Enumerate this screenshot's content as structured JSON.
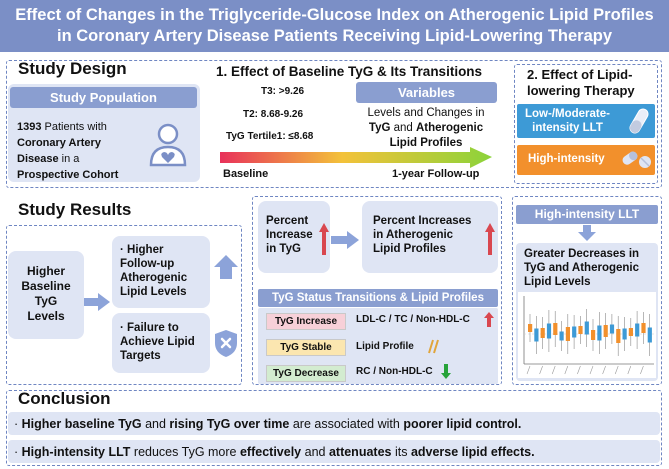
{
  "header": {
    "line1": "Effect of Changes in the Triglyceride-Glucose Index on Atherogenic Lipid Profiles",
    "line2": "in Coronary Artery Disease Patients Receiving Lipid-Lowering Therapy"
  },
  "design": {
    "title": "Study Design",
    "population": {
      "label": "Study Population",
      "count": "1393",
      "t1": " Patients with",
      "t2": "Coronary Artery",
      "t3": "Disease",
      "t4": " in a",
      "t5": "Prospective Cohort"
    },
    "effect1": {
      "title": "1. Effect of Baseline TyG & Its Transitions",
      "t3": "T3:  >9.26",
      "t2": "T2:  8.68-9.26",
      "t1": "TyG Tertile1: ≤8.68",
      "variables": "Variables",
      "var_l1": "Levels and Changes in",
      "var_tyg": "TyG",
      "var_and": " and ",
      "var_ath": "Atherogenic",
      "var_l3": "Lipid Profiles",
      "baseline": "Baseline",
      "followup": "1-year Follow-up"
    },
    "effect2": {
      "title1": "2. Effect of Lipid-",
      "title2": "lowering Therapy",
      "low1": "Low-/Moderate-",
      "low2": "intensity LLT",
      "high": "High-intensity"
    }
  },
  "results": {
    "title": "Study Results",
    "higher": [
      "Higher",
      "Baseline",
      "TyG",
      "Levels"
    ],
    "out1": [
      "· Higher",
      "Follow-up",
      "Atherogenic",
      "Lipid Levels"
    ],
    "out2": [
      "· Failure to",
      "Achieve Lipid",
      "Targets"
    ],
    "pct1": [
      "Percent",
      "Increase",
      "in TyG"
    ],
    "pct2": [
      "Percent Increases",
      "in Atherogenic",
      "Lipid Profiles"
    ],
    "transitions": {
      "title": "TyG Status Transitions & Lipid Profiles",
      "rows": [
        {
          "tag": "TyG Increase",
          "text": "LDL-C / TC / Non-HDL-C",
          "color": "#f7d0d8"
        },
        {
          "tag": "TyG Stable",
          "text": "Lipid Profile",
          "color": "#fbe6b0"
        },
        {
          "tag": "TyG Decrease",
          "text": "RC / Non-HDL-C",
          "color": "#d3ecd0"
        }
      ]
    },
    "hi": {
      "title": "High-intensity LLT",
      "l1": "Greater Decreases in",
      "l2": "TyG and Atherogenic",
      "l3": "Lipid Levels"
    }
  },
  "conclusion": {
    "title": "Conclusion",
    "line1": {
      "pre": "· ",
      "b1": "Higher baseline TyG",
      "m1": " and ",
      "b2": "rising TyG over time",
      "m2": " are associated with ",
      "b3": "poorer lipid control."
    },
    "line2": {
      "pre": "· ",
      "b1": "High-intensity LLT",
      "m1": " reduces TyG more ",
      "b2": "effectively",
      "m2": " and ",
      "b3": "attenuates",
      "m3": " its ",
      "b4": "adverse lipid effects."
    }
  },
  "icons": [
    "patient-heart-icon",
    "tablet-icon",
    "capsule-icon",
    "shield-x-icon",
    "up-arrow-icon",
    "down-arrow-icon",
    "stable-slash-icon",
    "boxplot-chart-icon"
  ],
  "colors": {
    "header": "#7b8fc6",
    "panel": "#dfe5f4",
    "bar": "#8a9ed0",
    "low": "#3d9ad6",
    "high": "#f2902c",
    "red": "#d9474f",
    "green": "#27a33a"
  }
}
